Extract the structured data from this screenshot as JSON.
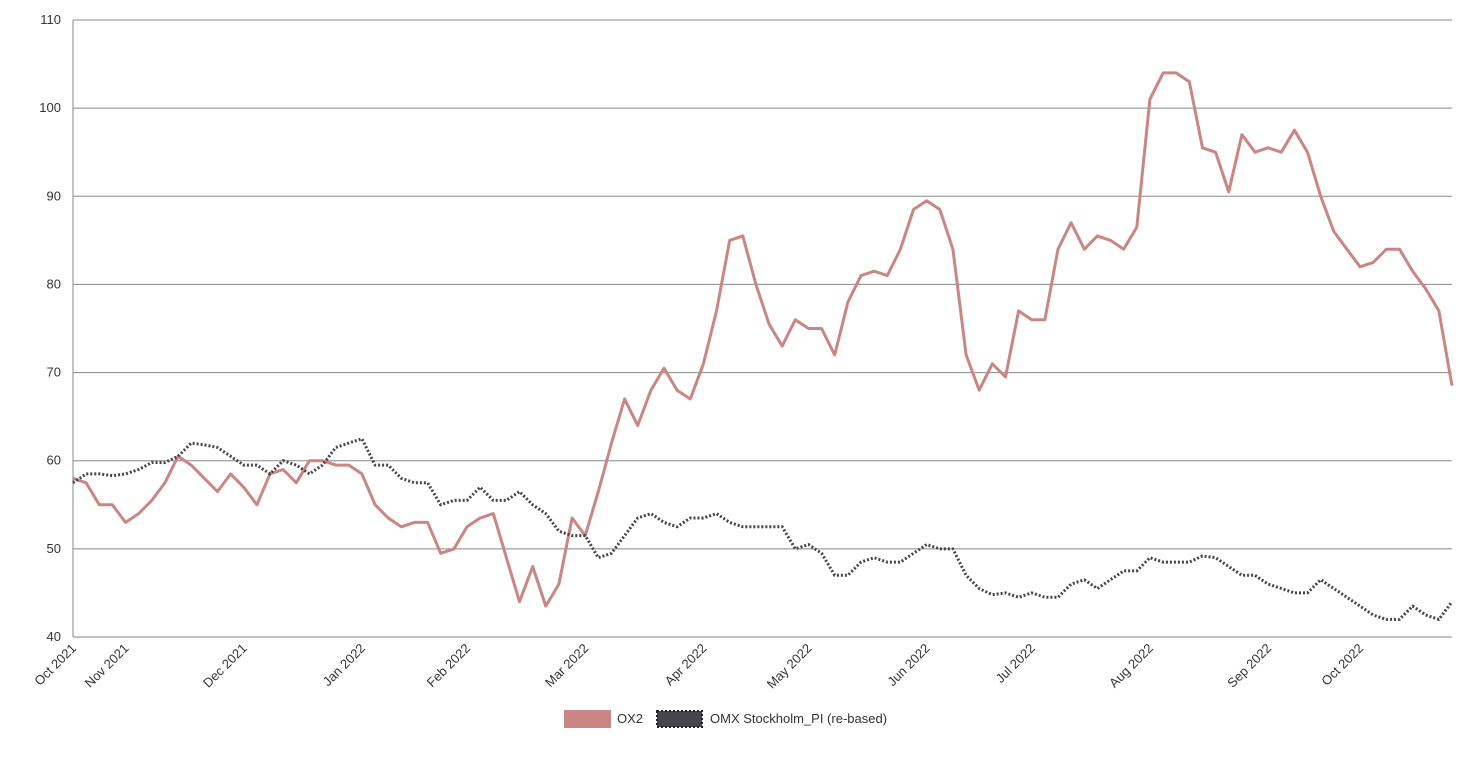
{
  "chart_data": {
    "type": "line",
    "categories": [
      "Oct 2021",
      null,
      null,
      null,
      "Nov 2021",
      null,
      null,
      null,
      null,
      null,
      null,
      null,
      null,
      "Dec 2021",
      null,
      null,
      null,
      null,
      null,
      null,
      null,
      null,
      "Jan 2022",
      null,
      null,
      null,
      null,
      null,
      null,
      null,
      "Feb 2022",
      null,
      null,
      null,
      null,
      null,
      null,
      null,
      null,
      "Mar 2022",
      null,
      null,
      null,
      null,
      null,
      null,
      null,
      null,
      "Apr 2022",
      null,
      null,
      null,
      null,
      null,
      null,
      null,
      "May 2022",
      null,
      null,
      null,
      null,
      null,
      null,
      null,
      null,
      "Jun 2022",
      null,
      null,
      null,
      null,
      null,
      null,
      null,
      "Jul 2022",
      null,
      null,
      null,
      null,
      null,
      null,
      null,
      null,
      "Aug 2022",
      null,
      null,
      null,
      null,
      null,
      null,
      null,
      null,
      "Sep 2022",
      null,
      null,
      null,
      null,
      null,
      null,
      "Oct 2022",
      null,
      null,
      null,
      null,
      null,
      null,
      null
    ],
    "series": [
      {
        "name": "OX2",
        "color": "#c98683",
        "values": [
          58,
          57.5,
          55,
          55,
          53,
          54,
          55.5,
          57.5,
          60.5,
          59.5,
          58,
          56.5,
          58.5,
          57,
          55,
          58.5,
          59,
          57.5,
          60,
          60,
          59.5,
          59.5,
          58.5,
          55,
          53.5,
          52.5,
          53,
          53,
          49.5,
          50,
          52.5,
          53.5,
          54,
          49,
          44,
          48,
          43.5,
          46,
          53.5,
          51.5,
          56.5,
          62,
          67,
          64,
          68,
          70.5,
          68,
          67,
          71,
          77,
          85,
          85.5,
          80,
          75.5,
          73,
          76,
          75,
          75,
          72,
          78,
          81,
          81.5,
          81,
          84,
          88.5,
          89.5,
          88.5,
          84,
          72,
          68,
          71,
          69.5,
          77,
          76,
          76,
          84,
          87,
          84,
          85.5,
          85,
          84,
          86.5,
          101,
          104,
          104,
          103,
          95.5,
          95,
          90.5,
          97,
          95,
          95.5,
          95,
          97.5,
          95,
          90,
          86,
          84,
          82,
          82.5,
          84,
          84,
          81.5,
          79.5,
          77,
          68.5
        ]
      },
      {
        "name": "OMX Stockholm_PI (re-based)",
        "color": "#45454a",
        "values": [
          57.5,
          58.5,
          58.5,
          58.3,
          58.5,
          59,
          59.8,
          59.8,
          60.5,
          62,
          61.8,
          61.5,
          60.5,
          59.5,
          59.5,
          58.5,
          60,
          59.5,
          58.5,
          59.5,
          61.5,
          62,
          62.5,
          59.5,
          59.5,
          58,
          57.5,
          57.5,
          55,
          55.5,
          55.5,
          57,
          55.5,
          55.5,
          56.5,
          55,
          54,
          52,
          51.5,
          51.5,
          49,
          49.5,
          51.5,
          53.5,
          54,
          53,
          52.5,
          53.5,
          53.5,
          54,
          53,
          52.5,
          52.5,
          52.5,
          52.5,
          50,
          50.5,
          49.5,
          47,
          47,
          48.5,
          49,
          48.5,
          48.5,
          49.5,
          50.5,
          50,
          50,
          47,
          45.5,
          44.8,
          45,
          44.5,
          45,
          44.5,
          44.5,
          46,
          46.5,
          45.5,
          46.5,
          47.5,
          47.5,
          49,
          48.5,
          48.5,
          48.5,
          49.2,
          49,
          48,
          47,
          47,
          46,
          45.5,
          45,
          45,
          46.5,
          45.5,
          44.5,
          43.5,
          42.5,
          42,
          42,
          43.5,
          42.5,
          42,
          44
        ]
      }
    ],
    "ylim": [
      40,
      110
    ],
    "yticks": [
      40,
      50,
      60,
      70,
      80,
      90,
      100,
      110
    ],
    "grid": true,
    "legend": "bottom"
  }
}
